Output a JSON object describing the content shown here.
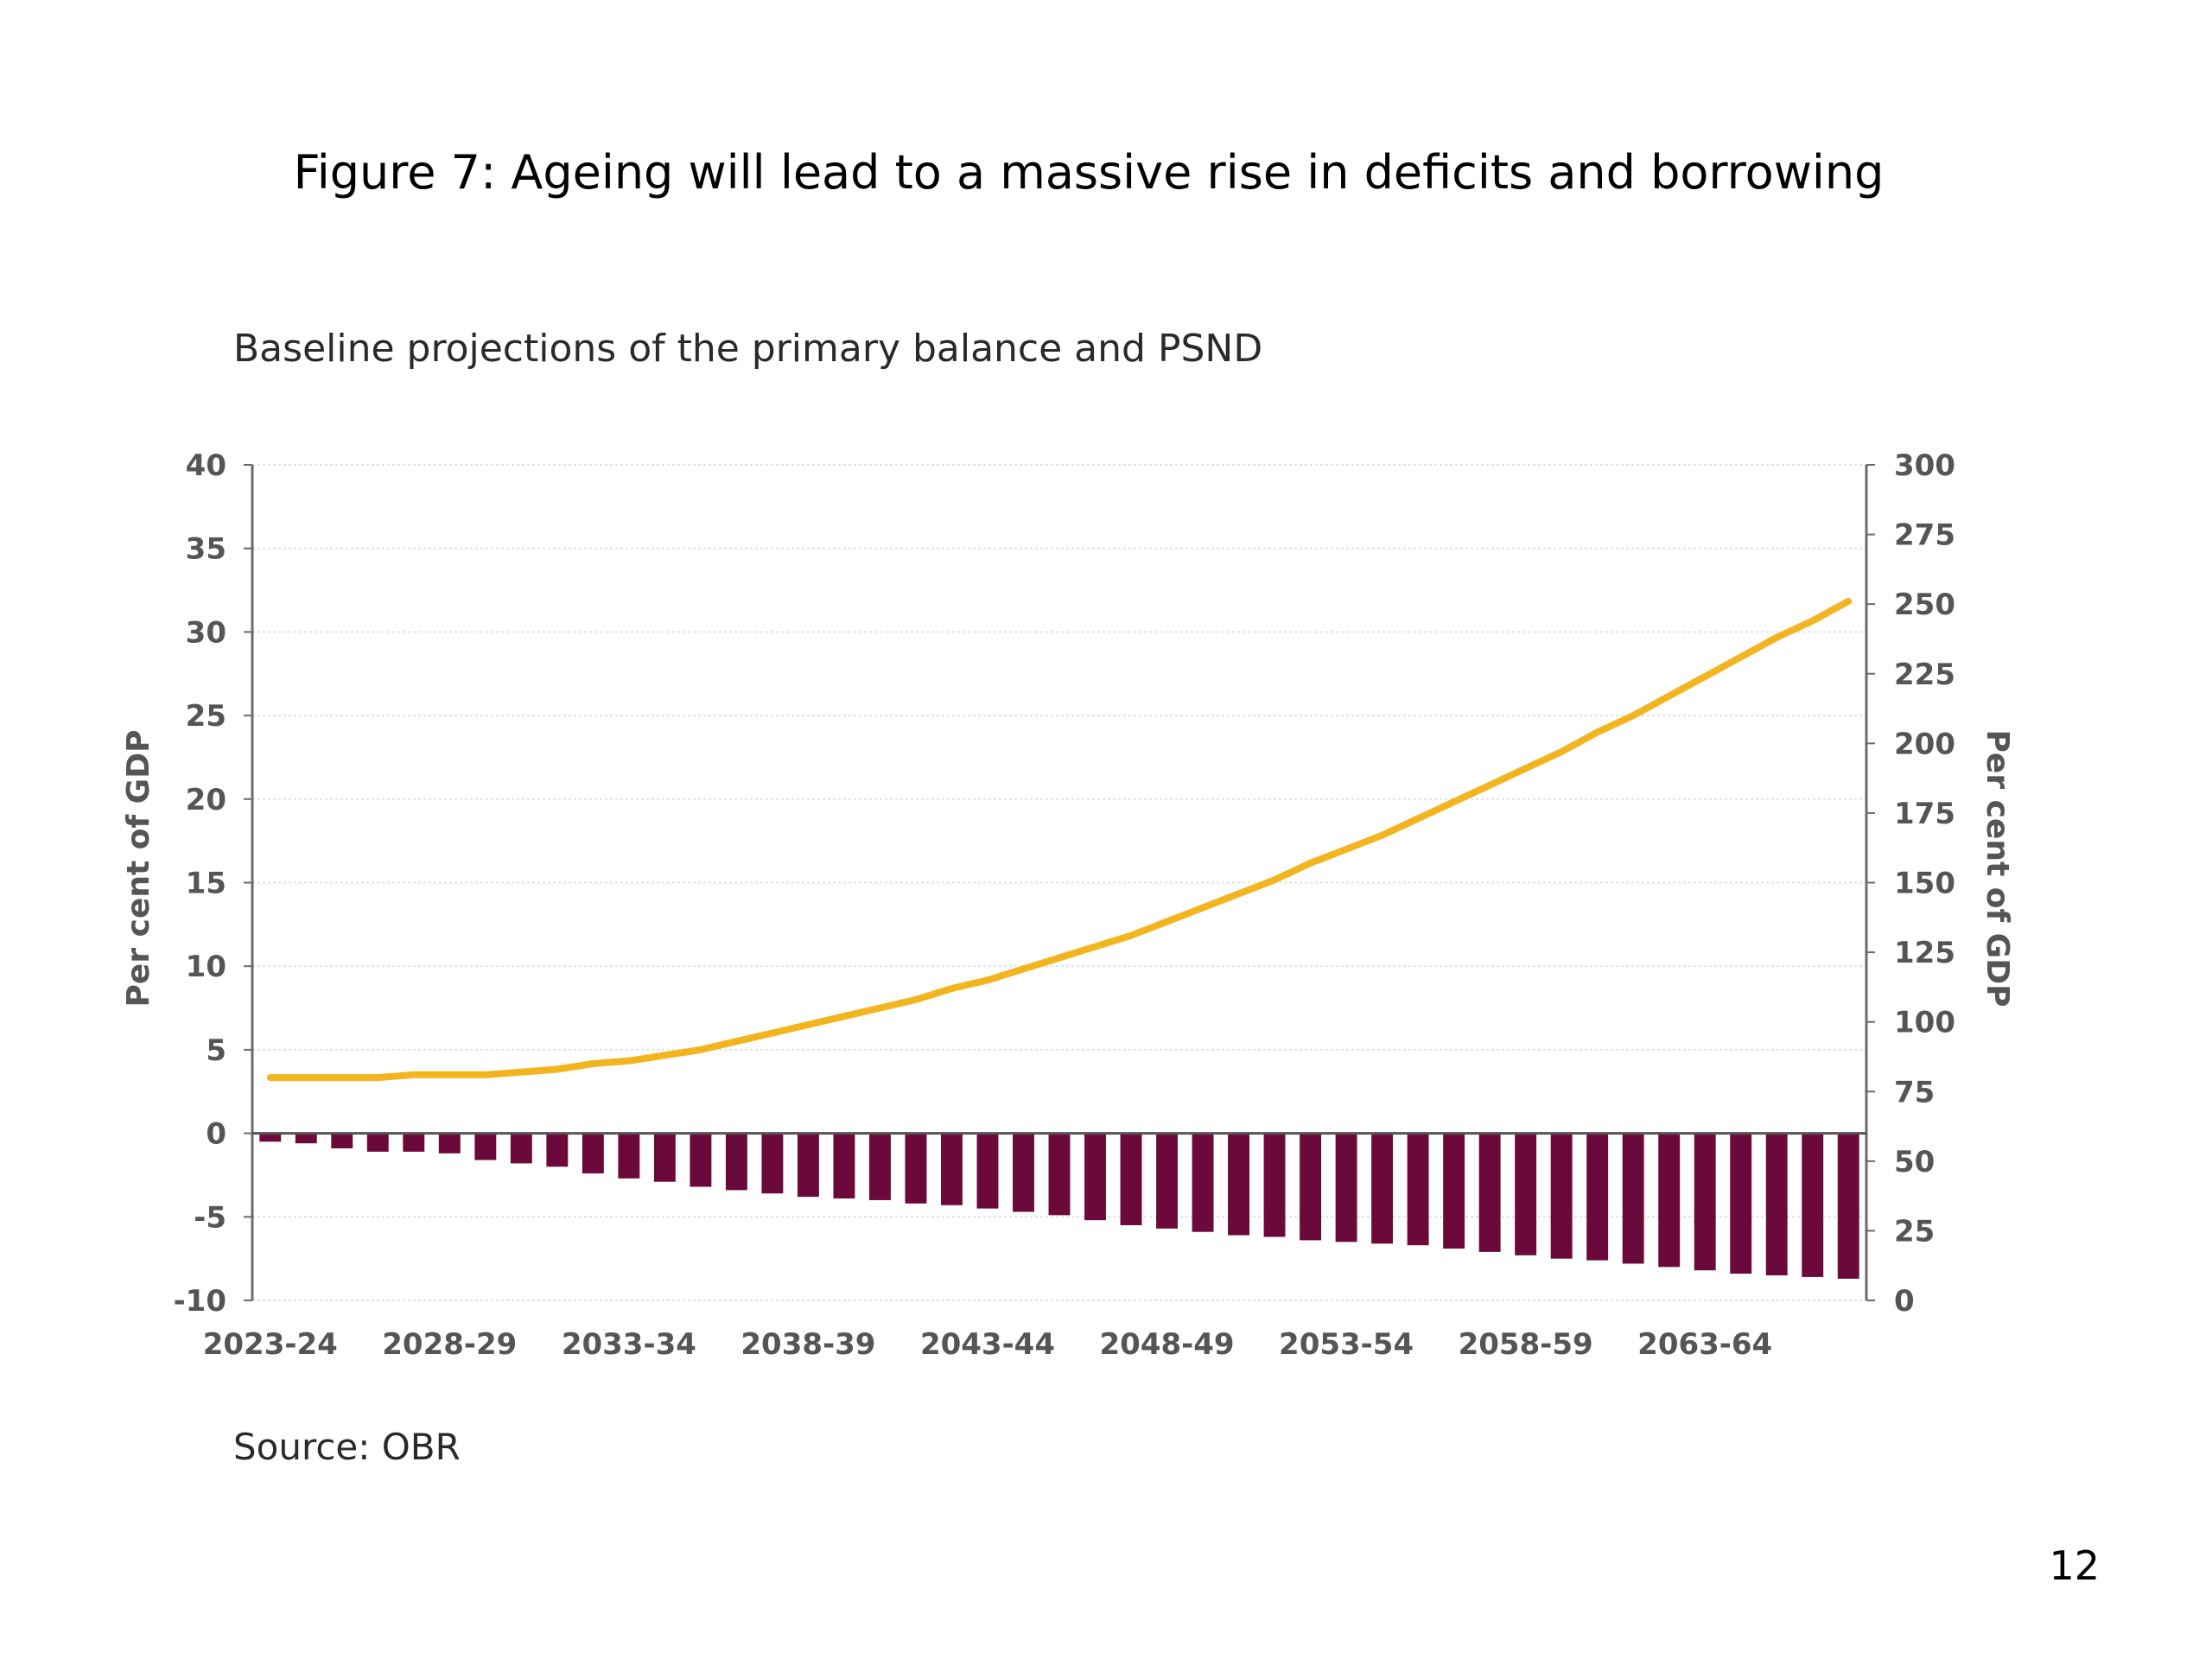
{
  "page": {
    "figure_title": "Figure 7:  Ageing will lead to a massive rise in deficits and borrowing",
    "source": "Source:  OBR",
    "page_number": "12"
  },
  "chart_data": {
    "type": "bar+line",
    "title": "Baseline projections of the primary balance and PSND",
    "ylabel_left": "Per cent of GDP",
    "ylabel_right": "Per cent of GDP",
    "ylim_left": [
      -10,
      40
    ],
    "ylim_right": [
      0,
      300
    ],
    "yticks_left": [
      -10,
      -5,
      0,
      5,
      10,
      15,
      20,
      25,
      30,
      35,
      40
    ],
    "yticks_right": [
      0,
      25,
      50,
      75,
      100,
      125,
      150,
      175,
      200,
      225,
      250,
      275,
      300
    ],
    "grid": true,
    "x_tick_labels": [
      "2023-24",
      "2028-29",
      "2033-34",
      "2038-39",
      "2043-44",
      "2048-49",
      "2053-54",
      "2058-59",
      "2063-64"
    ],
    "categories": [
      "2023-24",
      "2024-25",
      "2025-26",
      "2026-27",
      "2027-28",
      "2028-29",
      "2029-30",
      "2030-31",
      "2031-32",
      "2032-33",
      "2033-34",
      "2034-35",
      "2035-36",
      "2036-37",
      "2037-38",
      "2038-39",
      "2039-40",
      "2040-41",
      "2041-42",
      "2042-43",
      "2043-44",
      "2044-45",
      "2045-46",
      "2046-47",
      "2047-48",
      "2048-49",
      "2049-50",
      "2050-51",
      "2051-52",
      "2052-53",
      "2053-54",
      "2054-55",
      "2055-56",
      "2056-57",
      "2057-58",
      "2058-59",
      "2059-60",
      "2060-61",
      "2061-62",
      "2062-63",
      "2063-64",
      "2064-65",
      "2065-66",
      "2066-67",
      "2067-68"
    ],
    "series": [
      {
        "name": "",
        "kind": "bar",
        "axis": "left",
        "color": "#6b0a3a",
        "values": [
          -0.5,
          -0.6,
          -0.9,
          -1.1,
          -1.1,
          -1.2,
          -1.6,
          -1.8,
          -2.0,
          -2.4,
          -2.7,
          -2.9,
          -3.2,
          -3.4,
          -3.6,
          -3.8,
          -3.9,
          -4.0,
          -4.2,
          -4.3,
          -4.5,
          -4.7,
          -4.9,
          -5.2,
          -5.5,
          -5.7,
          -5.9,
          -6.1,
          -6.2,
          -6.4,
          -6.5,
          -6.6,
          -6.7,
          -6.9,
          -7.1,
          -7.3,
          -7.5,
          -7.6,
          -7.8,
          -8.0,
          -8.2,
          -8.4,
          -8.5,
          -8.6,
          -8.7
        ]
      },
      {
        "name": "",
        "kind": "line",
        "axis": "right",
        "color": "#f3b51f",
        "values": [
          80,
          80,
          80,
          80,
          81,
          81,
          81,
          82,
          83,
          85,
          86,
          88,
          90,
          93,
          96,
          99,
          102,
          105,
          108,
          112,
          115,
          119,
          123,
          127,
          131,
          136,
          141,
          146,
          151,
          157,
          162,
          167,
          173,
          179,
          185,
          191,
          197,
          204,
          210,
          217,
          224,
          231,
          238,
          244,
          251
        ]
      }
    ]
  }
}
